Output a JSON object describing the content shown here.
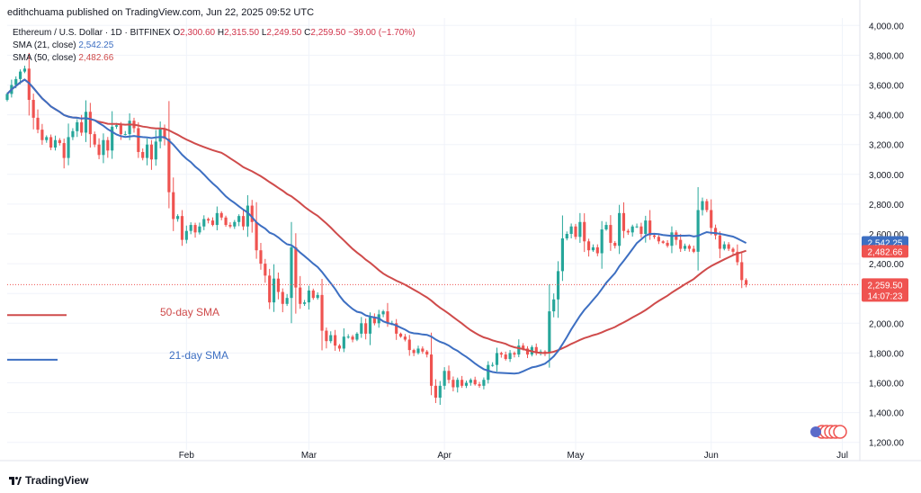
{
  "header": {
    "publisher": "edithchuama published on TradingView.com, Jun 22, 2025 09:52 UTC",
    "symbol": "Ethereum / U.S. Dollar · 1D · BITFINEX",
    "o_label": "O",
    "o": "2,300.60",
    "h_label": "H",
    "h": "2,315.50",
    "l_label": "L",
    "l": "2,249.50",
    "c_label": "C",
    "c": "2,259.50",
    "change": "−39.00 (−1.70%)",
    "sma21_label": "SMA (21, close)",
    "sma21_value": "2,542.25",
    "sma50_label": "SMA (50, close)",
    "sma50_value": "2,482.66"
  },
  "footer": {
    "brand": "TradingView"
  },
  "colors": {
    "up": "#26a69a",
    "down": "#ef5350",
    "sma21": "#3d6fc2",
    "sma50": "#cf4b4b",
    "last": "#ef5350"
  },
  "chart_data": {
    "type": "candlestick",
    "y_ticks": [
      1200,
      1400,
      1600,
      1800,
      2000,
      2200,
      2400,
      2600,
      2800,
      3000,
      3200,
      3400,
      3600,
      3800,
      4000
    ],
    "y_tick_labels": [
      "1,200.00",
      "1,400.00",
      "1,600.00",
      "1,800.00",
      "2,000.00",
      "2,200.00",
      "2,400.00",
      "2,600.00",
      "2,800.00",
      "3,000.00",
      "3,200.00",
      "3,400.00",
      "3,600.00",
      "3,800.00",
      "4,000.00"
    ],
    "ylim": [
      1150,
      4050
    ],
    "x_ticks": [
      {
        "label": "Feb",
        "date": "2025-02-01"
      },
      {
        "label": "Mar",
        "date": "2025-03-01"
      },
      {
        "label": "Apr",
        "date": "2025-04-01"
      },
      {
        "label": "May",
        "date": "2025-05-01"
      },
      {
        "label": "Jun",
        "date": "2025-06-01"
      },
      {
        "label": "Jul",
        "date": "2025-07-01"
      }
    ],
    "xlim": [
      "2024-12-22",
      "2025-07-05"
    ],
    "price_labels": [
      {
        "value": 2542.25,
        "text": "2,542.25",
        "color": "#3d6fc2"
      },
      {
        "value": 2482.66,
        "text": "2,482.66",
        "color": "#ef5350"
      },
      {
        "value": 2259.5,
        "text": "2,259.50",
        "sub": "14:07:23",
        "color": "#ef5350"
      }
    ],
    "last_price": 2259.5,
    "annotations": [
      {
        "text": "50-day SMA",
        "color": "#cf4b4b",
        "line_y": 2055
      },
      {
        "text": "21-day SMA",
        "color": "#3d6fc2",
        "line_y": 1755
      }
    ],
    "candles_start_date": "2024-12-22",
    "closes": [
      3540,
      3600,
      3640,
      3690,
      3710,
      3500,
      3380,
      3300,
      3230,
      3250,
      3180,
      3230,
      3210,
      3110,
      3250,
      3290,
      3350,
      3280,
      3420,
      3270,
      3200,
      3130,
      3230,
      3160,
      3320,
      3330,
      3270,
      3270,
      3360,
      3310,
      3150,
      3110,
      3200,
      3100,
      3220,
      3310,
      3240,
      2880,
      2700,
      2720,
      2560,
      2620,
      2660,
      2610,
      2650,
      2700,
      2690,
      2660,
      2740,
      2710,
      2660,
      2650,
      2680,
      2720,
      2650,
      2790,
      2680,
      2490,
      2400,
      2320,
      2140,
      2300,
      2210,
      2130,
      2170,
      2510,
      2240,
      2130,
      2140,
      2220,
      2170,
      2190,
      1950,
      1880,
      1920,
      1850,
      1830,
      1910,
      1910,
      1890,
      1930,
      2000,
      1930,
      2040,
      2000,
      2060,
      2080,
      2000,
      2000,
      1930,
      1910,
      1890,
      1820,
      1800,
      1830,
      1810,
      1790,
      1580,
      1500,
      1580,
      1680,
      1620,
      1570,
      1620,
      1580,
      1600,
      1620,
      1590,
      1580,
      1620,
      1720,
      1720,
      1800,
      1790,
      1760,
      1800,
      1790,
      1850,
      1830,
      1790,
      1840,
      1800,
      1810,
      1800,
      2080,
      2160,
      2350,
      2570,
      2600,
      2650,
      2580,
      2680,
      2550,
      2490,
      2510,
      2470,
      2630,
      2660,
      2540,
      2520,
      2740,
      2620,
      2610,
      2650,
      2650,
      2600,
      2690,
      2590,
      2580,
      2550,
      2540,
      2520,
      2610,
      2560,
      2500,
      2520,
      2500,
      2480,
      2760,
      2820,
      2760,
      2640,
      2590,
      2500,
      2530,
      2500,
      2480,
      2410,
      2290,
      2259.5
    ]
  }
}
